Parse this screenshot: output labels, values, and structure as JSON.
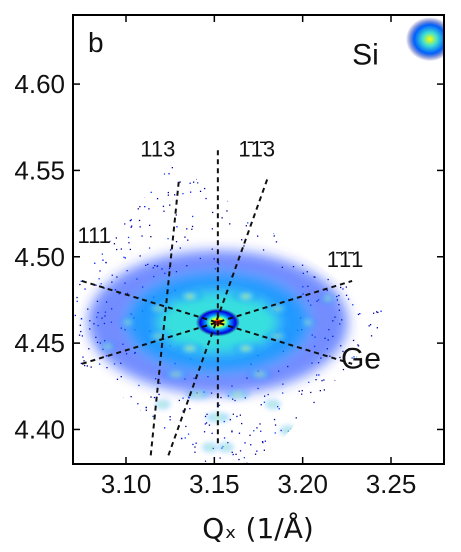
{
  "chart_data": {
    "type": "heatmap",
    "panel_label": "b",
    "xlabel": "Qₓ (1/Å)",
    "ylabel": "",
    "xlim": [
      3.07,
      3.28
    ],
    "ylim": [
      4.38,
      4.64
    ],
    "x_ticks": [
      {
        "value": 3.1,
        "label": "3.10"
      },
      {
        "value": 3.15,
        "label": "3.15"
      },
      {
        "value": 3.2,
        "label": "3.20"
      },
      {
        "value": 3.25,
        "label": "3.25"
      }
    ],
    "y_ticks": [
      {
        "value": 4.4,
        "label": "4.40"
      },
      {
        "value": 4.45,
        "label": "4.45"
      },
      {
        "value": 4.5,
        "label": "4.50"
      },
      {
        "value": 4.55,
        "label": "4.55"
      },
      {
        "value": 4.6,
        "label": "4.60"
      }
    ],
    "region_labels": [
      {
        "text": "Si",
        "x": 3.245,
        "y": 4.617
      },
      {
        "text": "Ge",
        "x": 3.233,
        "y": 4.441
      }
    ],
    "peaks": [
      {
        "name": "Ge",
        "x": 3.152,
        "y": 4.462
      },
      {
        "name": "Si",
        "x": 3.272,
        "y": 4.626
      }
    ],
    "facet_lines": [
      {
        "label": "113",
        "x1": 3.114,
        "y1": 4.385,
        "x2": 3.13,
        "y2": 4.545
      },
      {
        "label": "1̄1̄3",
        "x1": 3.124,
        "y1": 4.385,
        "x2": 3.18,
        "y2": 4.545
      },
      {
        "label": "111",
        "x1": 3.075,
        "y1": 4.486,
        "x2": 3.228,
        "y2": 4.438
      },
      {
        "label": "1̄1̄1",
        "x1": 3.075,
        "y1": 4.438,
        "x2": 3.228,
        "y2": 4.486
      },
      {
        "label": "",
        "x1": 3.152,
        "y1": 4.392,
        "x2": 3.152,
        "y2": 4.562
      }
    ],
    "miller_labels": [
      {
        "text": "113",
        "x": 3.118,
        "y": 4.558
      },
      {
        "text": "1̄1̄3",
        "x": 3.174,
        "y": 4.558
      },
      {
        "text": "111",
        "x": 3.082,
        "y": 4.508
      },
      {
        "text": "1̄1̄1",
        "x": 3.224,
        "y": 4.494
      }
    ],
    "colormap": [
      "#00007f",
      "#0000ff",
      "#0080ff",
      "#00ffff",
      "#80ff80",
      "#ffff00",
      "#ff8000",
      "#ff0000",
      "#800000"
    ],
    "grid": false
  }
}
